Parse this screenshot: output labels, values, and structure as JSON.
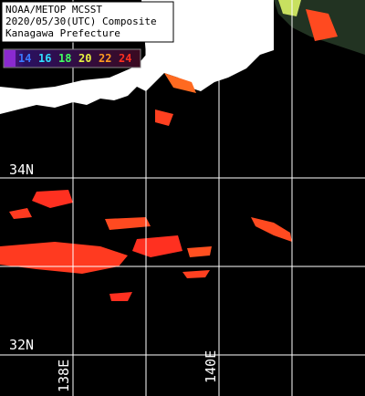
{
  "header": {
    "lines": [
      "NOAA/METOP MCSST",
      "2020/05/30(UTC) Composite",
      "Kanagawa Prefecture"
    ]
  },
  "legend": {
    "labels": [
      "14",
      "16",
      "18",
      "20",
      "22",
      "24"
    ]
  },
  "grid": {
    "latitudes": [
      "34N",
      "32N"
    ],
    "longitudes": [
      "138E",
      "140E"
    ]
  }
}
